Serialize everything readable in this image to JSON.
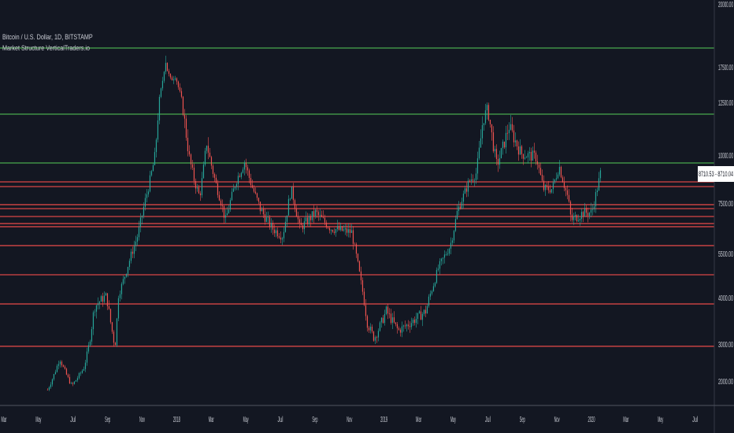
{
  "header": {
    "symbol": "Bitcoin / U.S. Dollar, 1D, BITSTAMP",
    "indicator": "Market Structure VerticalTraders.io"
  },
  "price_label": "8710.53 - 8710.04",
  "colors": {
    "background": "#131722",
    "up": "#26a69a",
    "down": "#ef5350",
    "support": "#e04848",
    "resistance": "#4caf50",
    "axis": "#787b86"
  },
  "chart_data": {
    "type": "candlestick",
    "title": "Bitcoin / U.S. Dollar, 1D, BITSTAMP",
    "yscale": "log",
    "y_ticks": [
      {
        "value": 20000,
        "label": "20000.00"
      },
      {
        "value": 17500,
        "label": "17500.00"
      },
      {
        "value": 12500,
        "label": "12500.00"
      },
      {
        "value": 10000,
        "label": "10000.00"
      },
      {
        "value": 7500,
        "label": "7500.00"
      },
      {
        "value": 5500,
        "label": "5500.00"
      },
      {
        "value": 4000,
        "label": "4000.00"
      },
      {
        "value": 3000,
        "label": "3000.00"
      },
      {
        "value": 2000,
        "label": "2000.00"
      }
    ],
    "x_ticks": [
      {
        "month": 2,
        "label": "Mar"
      },
      {
        "month": 4,
        "label": "May"
      },
      {
        "month": 6,
        "label": "Jul"
      },
      {
        "month": 8,
        "label": "Sep"
      },
      {
        "month": 10,
        "label": "Nov"
      },
      {
        "month": 12,
        "label": "2018"
      },
      {
        "month": 14,
        "label": "Mar"
      },
      {
        "month": 16,
        "label": "May"
      },
      {
        "month": 18,
        "label": "Jul"
      },
      {
        "month": 20,
        "label": "Sep"
      },
      {
        "month": 22,
        "label": "Nov"
      },
      {
        "month": 24,
        "label": "2019"
      },
      {
        "month": 26,
        "label": "Mar"
      },
      {
        "month": 28,
        "label": "May"
      },
      {
        "month": 30,
        "label": "Jul"
      },
      {
        "month": 32,
        "label": "Sep"
      },
      {
        "month": 34,
        "label": "Nov"
      },
      {
        "month": 36,
        "label": "2020"
      },
      {
        "month": 38,
        "label": "Mar"
      },
      {
        "month": 40,
        "label": "May"
      },
      {
        "month": 42,
        "label": "Jul"
      }
    ],
    "x_unit": "months since Jan 2017",
    "price_path": [
      [
        4.5,
        1766
      ],
      [
        5.2,
        2617
      ],
      [
        5.9,
        1872
      ],
      [
        6.6,
        2362
      ],
      [
        7.2,
        3797
      ],
      [
        7.9,
        4080
      ],
      [
        8.4,
        2936
      ],
      [
        8.6,
        4080
      ],
      [
        9.1,
        5018
      ],
      [
        9.7,
        6188
      ],
      [
        10.2,
        7828
      ],
      [
        10.7,
        9877
      ],
      [
        11.1,
        14722
      ],
      [
        11.3,
        18281
      ],
      [
        11.6,
        15611
      ],
      [
        11.9,
        16389
      ],
      [
        12.3,
        12500
      ],
      [
        12.7,
        9877
      ],
      [
        13.0,
        8648
      ],
      [
        13.3,
        7828
      ],
      [
        13.7,
        10634
      ],
      [
        14.2,
        8648
      ],
      [
        14.8,
        6813
      ],
      [
        15.4,
        8648
      ],
      [
        15.9,
        9672
      ],
      [
        16.3,
        8443
      ],
      [
        16.8,
        7281
      ],
      [
        17.5,
        6500
      ],
      [
        18.1,
        6188
      ],
      [
        18.6,
        8238
      ],
      [
        19.1,
        6500
      ],
      [
        20.0,
        7125
      ],
      [
        20.9,
        6500
      ],
      [
        22.1,
        6344
      ],
      [
        22.5,
        4982
      ],
      [
        23.0,
        3458
      ],
      [
        23.4,
        3119
      ],
      [
        24.1,
        3712
      ],
      [
        24.8,
        3288
      ],
      [
        25.5,
        3458
      ],
      [
        26.4,
        3712
      ],
      [
        27.1,
        4982
      ],
      [
        27.8,
        5813
      ],
      [
        28.2,
        7125
      ],
      [
        28.9,
        8648
      ],
      [
        29.3,
        9058
      ],
      [
        29.7,
        11754
      ],
      [
        30.0,
        12127
      ],
      [
        30.5,
        9467
      ],
      [
        31.2,
        11381
      ],
      [
        31.9,
        10075
      ],
      [
        32.8,
        9877
      ],
      [
        33.2,
        8238
      ],
      [
        33.7,
        8238
      ],
      [
        34.1,
        9467
      ],
      [
        34.6,
        7828
      ],
      [
        34.8,
        6813
      ],
      [
        35.5,
        7125
      ],
      [
        36.0,
        7125
      ],
      [
        36.5,
        9058
      ]
    ],
    "levels": [
      {
        "price": 18250,
        "type": "resistance"
      },
      {
        "price": 11940,
        "type": "resistance"
      },
      {
        "price": 9590,
        "type": "resistance"
      },
      {
        "price": 8607,
        "type": "support"
      },
      {
        "price": 8361,
        "type": "support"
      },
      {
        "price": 7438,
        "type": "support"
      },
      {
        "price": 7281,
        "type": "support"
      },
      {
        "price": 6969,
        "type": "support"
      },
      {
        "price": 6688,
        "type": "support"
      },
      {
        "price": 6563,
        "type": "support"
      },
      {
        "price": 5813,
        "type": "support"
      },
      {
        "price": 4777,
        "type": "support"
      },
      {
        "price": 3864,
        "type": "support"
      },
      {
        "price": 2940,
        "type": "support"
      }
    ],
    "last_price": 8710.53
  }
}
